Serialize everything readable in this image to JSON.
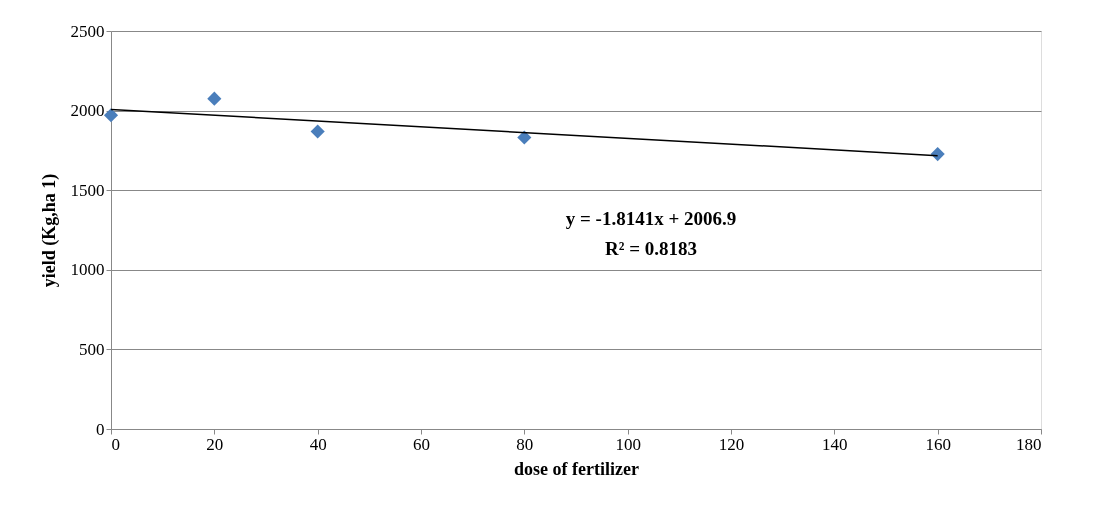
{
  "chart_data": {
    "type": "scatter",
    "xlabel": "dose of fertilizer",
    "ylabel": "yield (Kg,ha 1)",
    "xlim": [
      0,
      180
    ],
    "xticks": [
      0,
      20,
      40,
      60,
      80,
      100,
      120,
      140,
      160,
      180
    ],
    "ylim": [
      0,
      2500
    ],
    "yticks": [
      0,
      500,
      1000,
      1500,
      2000,
      2500
    ],
    "grid": "y",
    "series": [
      {
        "marker": "diamond",
        "color": "#4a7ebb",
        "x": [
          0,
          20,
          40,
          80,
          160
        ],
        "values": [
          1971,
          2075,
          1869,
          1831,
          1727
        ]
      },
      {
        "type": "line",
        "color": "#000000",
        "x": [
          0,
          160
        ],
        "values": [
          2007,
          1717
        ]
      }
    ],
    "annotations": [
      "y = -1.8141x + 2006.9",
      "R² = 0.8183"
    ]
  }
}
